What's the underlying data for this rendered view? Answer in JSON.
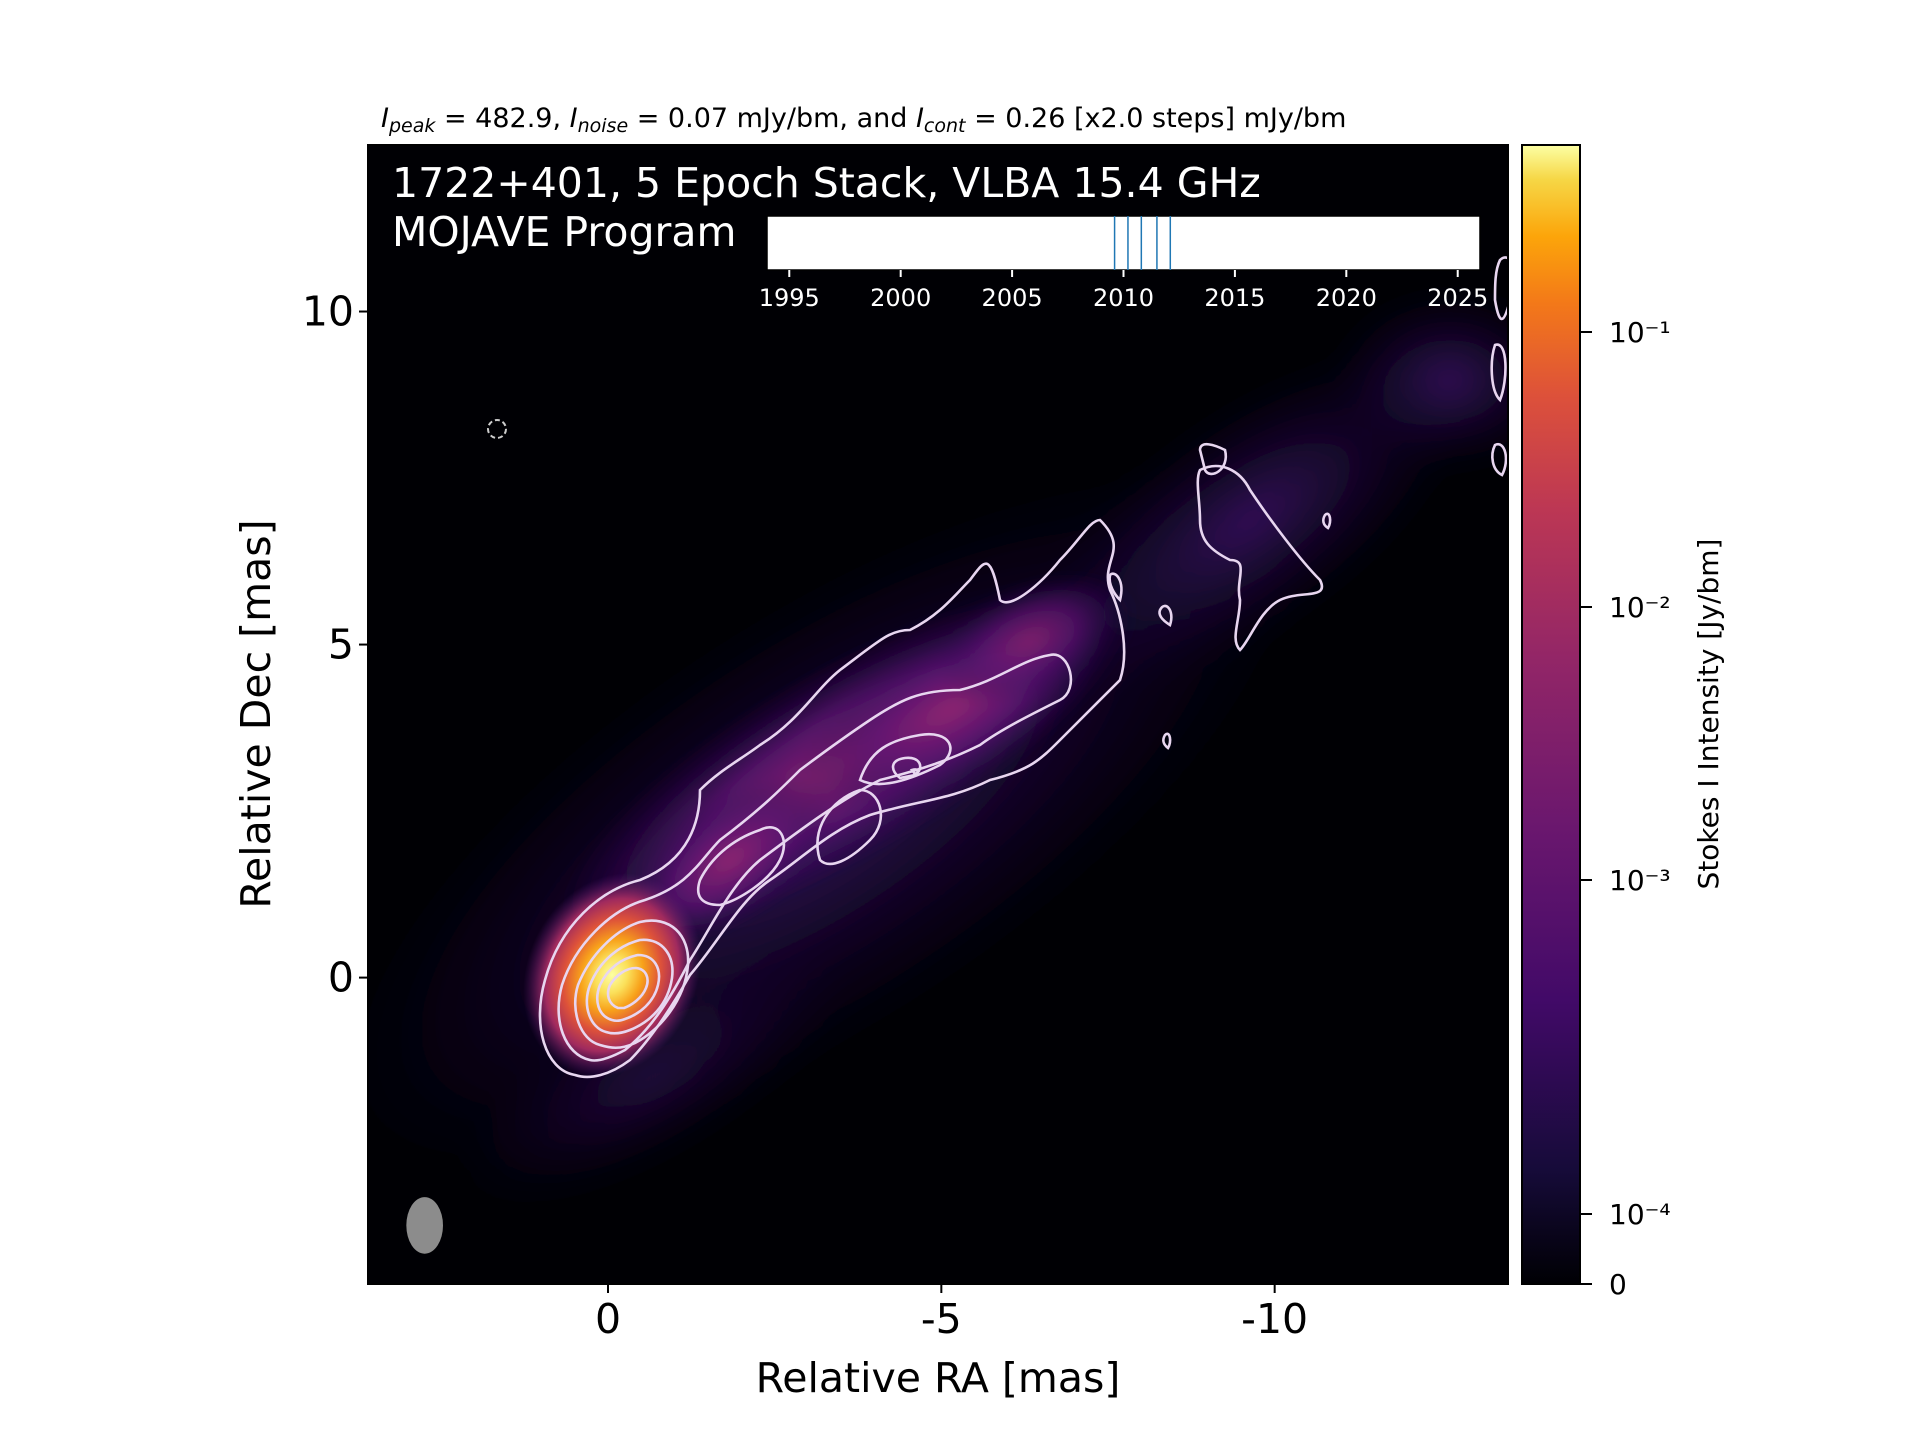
{
  "chart_data": {
    "type": "heatmap",
    "header": {
      "peak_sym": "I",
      "peak_sub": "peak",
      "peak_val": " = 482.9, ",
      "noise_sym": "I",
      "noise_sub": "noise",
      "noise_val": " = 0.07 mJy/bm, and ",
      "cont_sym": "I",
      "cont_sub": "cont",
      "cont_val": " = 0.26 [x2.0 steps] mJy/bm"
    },
    "title_line1": "1722+401, 5 Epoch Stack, VLBA 15.4 GHz",
    "title_line2": "MOJAVE Program",
    "xlabel": "Relative RA [mas]",
    "ylabel": "Relative Dec [mas]",
    "xlim": [
      3.6,
      -13.5
    ],
    "ylim": [
      -4.6,
      12.5
    ],
    "xticks": [
      {
        "value": 0,
        "label": "0"
      },
      {
        "value": -5,
        "label": "-5"
      },
      {
        "value": -10,
        "label": "-10"
      }
    ],
    "yticks": [
      {
        "value": 0,
        "label": "0"
      },
      {
        "value": 5,
        "label": "5"
      },
      {
        "value": 10,
        "label": "10"
      }
    ],
    "colormap": "inferno",
    "colorbar": {
      "label": "Stokes I Intensity [Jy/bm]",
      "ticks": [
        {
          "value": 0,
          "label": "0"
        },
        {
          "value": 0.0001,
          "label": "10⁻⁴"
        },
        {
          "value": 0.001,
          "label": "10⁻³"
        },
        {
          "value": 0.01,
          "label": "10⁻²"
        },
        {
          "value": 0.1,
          "label": "10⁻¹"
        }
      ]
    },
    "epoch_timeline": {
      "range": [
        1994,
        2026
      ],
      "ticks": [
        {
          "value": 1995,
          "label": "1995"
        },
        {
          "value": 2000,
          "label": "2000"
        },
        {
          "value": 2005,
          "label": "2005"
        },
        {
          "value": 2010,
          "label": "2010"
        },
        {
          "value": 2015,
          "label": "2015"
        },
        {
          "value": 2020,
          "label": "2020"
        },
        {
          "value": 2025,
          "label": "2025"
        }
      ],
      "epochs": [
        2009.6,
        2010.2,
        2010.8,
        2011.5,
        2012.1
      ]
    },
    "beam": {
      "ra": 2.75,
      "dec": -3.72,
      "major_mas": 0.85,
      "minor_mas": 0.55,
      "pa_deg": 0
    }
  },
  "colors": {
    "background": "#000004",
    "contour": "#e8d6f0",
    "timeline_line": "#1f77b4",
    "beam": "#8c8c8c"
  }
}
